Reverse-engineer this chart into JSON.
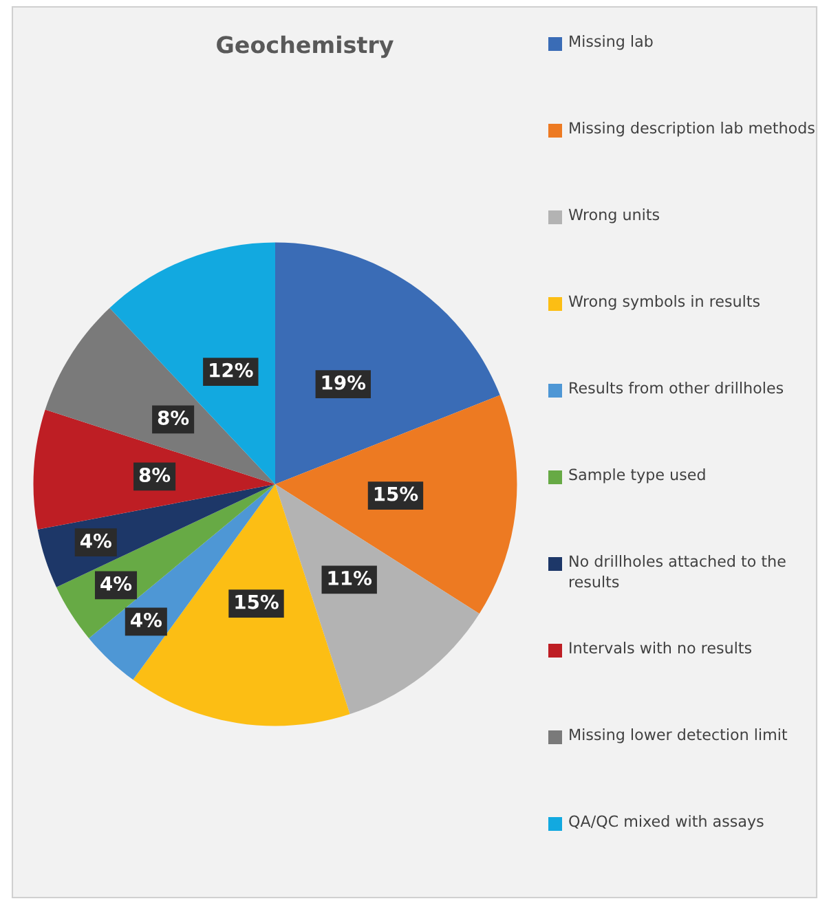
{
  "chart_data": {
    "type": "pie",
    "title": "Geochemistry",
    "categories": [
      "Missing lab",
      "Missing description lab methods",
      "Wrong units",
      "Wrong symbols in results",
      "Results from other drillholes",
      "Sample type used",
      "No drillholes attached to the results",
      "Intervals with no results",
      "Missing lower detection limit",
      "QA/QC mixed with assays"
    ],
    "values": [
      19,
      15,
      11,
      15,
      4,
      4,
      4,
      8,
      8,
      12
    ],
    "colors": [
      "#3a6cb6",
      "#ed7a22",
      "#b3b3b3",
      "#fcbe14",
      "#4e97d5",
      "#67aa45",
      "#1d3768",
      "#be1e24",
      "#7a7a7a",
      "#12a9e0"
    ],
    "value_labels": [
      "19%",
      "15%",
      "11%",
      "15%",
      "4%",
      "4%",
      "4%",
      "8%",
      "8%",
      "12%"
    ],
    "legend": "right"
  }
}
